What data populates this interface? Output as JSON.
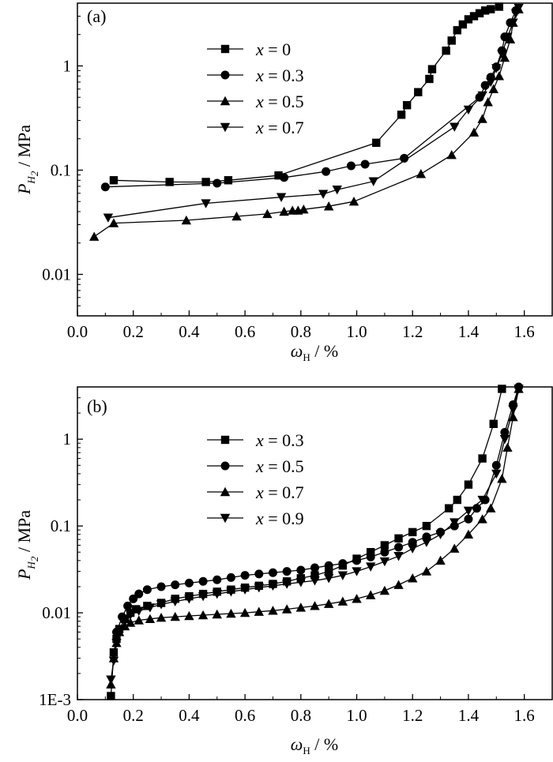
{
  "chart_data": [
    {
      "type": "line",
      "panel_label": "(a)",
      "xlabel": "ωH / %",
      "ylabel": "PH2 / MPa",
      "xlim": [
        0.0,
        1.7
      ],
      "ylim": [
        0.004,
        4
      ],
      "y_scale": "log",
      "x_ticks": [
        "0.0",
        "0.2",
        "0.4",
        "0.6",
        "0.8",
        "1.0",
        "1.2",
        "1.4",
        "1.6"
      ],
      "y_ticks": [
        "0.01",
        "0.1",
        "1"
      ],
      "grid": false,
      "legend_position": "top-left",
      "series": [
        {
          "name": "x = 0",
          "marker": "square",
          "x": [
            0.13,
            0.33,
            0.46,
            0.54,
            0.72,
            1.07,
            1.16,
            1.18,
            1.22,
            1.26,
            1.27,
            1.32,
            1.34,
            1.36,
            1.38,
            1.4,
            1.42,
            1.44,
            1.46,
            1.48,
            1.51
          ],
          "y": [
            0.08,
            0.077,
            0.077,
            0.08,
            0.089,
            0.183,
            0.34,
            0.42,
            0.56,
            0.75,
            0.93,
            1.4,
            1.75,
            2.2,
            2.5,
            2.8,
            3.0,
            3.2,
            3.4,
            3.5,
            3.7
          ]
        },
        {
          "name": "x = 0.3",
          "marker": "circle",
          "x": [
            0.1,
            0.5,
            0.74,
            0.89,
            0.98,
            1.03,
            1.17,
            1.44,
            1.46,
            1.48,
            1.5,
            1.52,
            1.53,
            1.55,
            1.57
          ],
          "y": [
            0.069,
            0.075,
            0.085,
            0.097,
            0.11,
            0.114,
            0.13,
            0.5,
            0.65,
            0.78,
            0.98,
            1.4,
            1.9,
            2.6,
            3.4
          ]
        },
        {
          "name": "x = 0.5",
          "marker": "triangle-up",
          "x": [
            0.06,
            0.13,
            0.39,
            0.57,
            0.68,
            0.74,
            0.77,
            0.79,
            0.81,
            0.9,
            0.99,
            1.23,
            1.34,
            1.42,
            1.45,
            1.47,
            1.49,
            1.51,
            1.53,
            1.55,
            1.56,
            1.58
          ],
          "y": [
            0.023,
            0.031,
            0.033,
            0.036,
            0.038,
            0.04,
            0.041,
            0.041,
            0.042,
            0.045,
            0.05,
            0.092,
            0.14,
            0.23,
            0.31,
            0.45,
            0.6,
            0.8,
            1.2,
            1.8,
            2.6,
            3.5
          ]
        },
        {
          "name": "x = 0.7",
          "marker": "triangle-down",
          "x": [
            0.11,
            0.46,
            0.73,
            0.88,
            0.93,
            1.06,
            1.35,
            1.4,
            1.45,
            1.48,
            1.5,
            1.52,
            1.54,
            1.56,
            1.57,
            1.58
          ],
          "y": [
            0.035,
            0.048,
            0.055,
            0.059,
            0.065,
            0.078,
            0.26,
            0.38,
            0.52,
            0.7,
            0.95,
            1.3,
            1.9,
            2.6,
            3.2,
            3.6
          ]
        }
      ]
    },
    {
      "type": "line",
      "panel_label": "(b)",
      "xlabel": "ωH / %",
      "ylabel": "PH2 / MPa",
      "xlim": [
        0.0,
        1.7
      ],
      "ylim": [
        0.001,
        4
      ],
      "y_scale": "log",
      "x_ticks": [
        "0.0",
        "0.2",
        "0.4",
        "0.6",
        "0.8",
        "1.0",
        "1.2",
        "1.4",
        "1.6"
      ],
      "y_ticks": [
        "1E-3",
        "0.01",
        "0.1",
        "1"
      ],
      "grid": false,
      "legend_position": "top-left",
      "series": [
        {
          "name": "x = 0.3",
          "marker": "square",
          "x": [
            0.12,
            0.13,
            0.14,
            0.15,
            0.17,
            0.19,
            0.21,
            0.25,
            0.3,
            0.35,
            0.4,
            0.45,
            0.5,
            0.55,
            0.6,
            0.65,
            0.7,
            0.75,
            0.8,
            0.85,
            0.9,
            0.95,
            1.0,
            1.05,
            1.1,
            1.15,
            1.2,
            1.25,
            1.33,
            1.36,
            1.4,
            1.45,
            1.49,
            1.52
          ],
          "y": [
            0.0011,
            0.0035,
            0.005,
            0.0065,
            0.0085,
            0.01,
            0.011,
            0.012,
            0.013,
            0.0145,
            0.0155,
            0.0165,
            0.0175,
            0.0185,
            0.0195,
            0.0205,
            0.0215,
            0.023,
            0.025,
            0.027,
            0.03,
            0.035,
            0.042,
            0.05,
            0.06,
            0.072,
            0.085,
            0.1,
            0.16,
            0.2,
            0.3,
            0.6,
            1.5,
            3.8
          ]
        },
        {
          "name": "x = 0.5",
          "marker": "circle",
          "x": [
            0.14,
            0.16,
            0.18,
            0.2,
            0.22,
            0.25,
            0.3,
            0.35,
            0.4,
            0.45,
            0.5,
            0.55,
            0.6,
            0.65,
            0.7,
            0.75,
            0.8,
            0.85,
            0.9,
            0.95,
            1.0,
            1.05,
            1.1,
            1.15,
            1.2,
            1.25,
            1.3,
            1.35,
            1.4,
            1.43,
            1.46,
            1.5,
            1.53,
            1.56,
            1.58
          ],
          "y": [
            0.006,
            0.009,
            0.012,
            0.0145,
            0.0165,
            0.0185,
            0.02,
            0.021,
            0.022,
            0.023,
            0.024,
            0.0255,
            0.027,
            0.028,
            0.029,
            0.03,
            0.031,
            0.033,
            0.035,
            0.037,
            0.04,
            0.044,
            0.05,
            0.057,
            0.065,
            0.075,
            0.085,
            0.1,
            0.12,
            0.16,
            0.2,
            0.5,
            1.2,
            2.5,
            4.0
          ]
        },
        {
          "name": "x = 0.7",
          "marker": "triangle-up",
          "x": [
            0.12,
            0.13,
            0.14,
            0.15,
            0.17,
            0.19,
            0.22,
            0.26,
            0.3,
            0.35,
            0.4,
            0.45,
            0.5,
            0.55,
            0.6,
            0.65,
            0.7,
            0.75,
            0.8,
            0.85,
            0.9,
            0.95,
            1.0,
            1.05,
            1.1,
            1.15,
            1.2,
            1.25,
            1.3,
            1.35,
            1.4,
            1.45,
            1.48,
            1.52,
            1.54,
            1.56,
            1.58
          ],
          "y": [
            0.0015,
            0.003,
            0.0045,
            0.006,
            0.007,
            0.0077,
            0.0082,
            0.0085,
            0.0088,
            0.009,
            0.0092,
            0.0094,
            0.0096,
            0.0098,
            0.01,
            0.0103,
            0.0106,
            0.011,
            0.0115,
            0.012,
            0.0127,
            0.0135,
            0.0145,
            0.016,
            0.018,
            0.021,
            0.025,
            0.03,
            0.04,
            0.055,
            0.08,
            0.12,
            0.16,
            0.35,
            0.8,
            1.8,
            3.8
          ]
        },
        {
          "name": "x = 0.9",
          "marker": "triangle-down",
          "x": [
            0.12,
            0.13,
            0.14,
            0.15,
            0.17,
            0.19,
            0.22,
            0.26,
            0.3,
            0.35,
            0.4,
            0.45,
            0.5,
            0.55,
            0.6,
            0.65,
            0.7,
            0.75,
            0.8,
            0.85,
            0.9,
            0.95,
            1.0,
            1.05,
            1.1,
            1.15,
            1.2,
            1.25,
            1.3,
            1.35,
            1.4,
            1.45,
            1.5,
            1.53,
            1.56,
            1.58
          ],
          "y": [
            0.0017,
            0.0028,
            0.0045,
            0.006,
            0.008,
            0.0095,
            0.0105,
            0.0115,
            0.0125,
            0.0135,
            0.0145,
            0.0155,
            0.0165,
            0.0175,
            0.0185,
            0.0195,
            0.0205,
            0.0215,
            0.0225,
            0.0235,
            0.025,
            0.027,
            0.03,
            0.034,
            0.039,
            0.045,
            0.055,
            0.065,
            0.08,
            0.11,
            0.15,
            0.2,
            0.4,
            1.0,
            2.2,
            3.8
          ]
        }
      ]
    }
  ]
}
